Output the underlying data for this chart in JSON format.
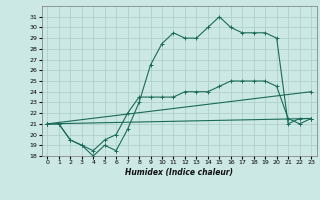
{
  "xlabel": "Humidex (Indice chaleur)",
  "bg_color": "#cce8e4",
  "line_color": "#1a6b5a",
  "grid_color": "#aaccc8",
  "xlim": [
    -0.5,
    23.5
  ],
  "ylim": [
    18,
    32
  ],
  "xticks": [
    0,
    1,
    2,
    3,
    4,
    5,
    6,
    7,
    8,
    9,
    10,
    11,
    12,
    13,
    14,
    15,
    16,
    17,
    18,
    19,
    20,
    21,
    22,
    23
  ],
  "yticks": [
    18,
    19,
    20,
    21,
    22,
    23,
    24,
    25,
    26,
    27,
    28,
    29,
    30,
    31
  ],
  "lines": [
    {
      "x": [
        0,
        1,
        2,
        3,
        4,
        5,
        6,
        7,
        8,
        9,
        10,
        11,
        12,
        13,
        14,
        15,
        16,
        17,
        18,
        19,
        20,
        21,
        22,
        23
      ],
      "y": [
        21,
        21,
        19.5,
        19,
        18,
        19,
        18.5,
        20.5,
        23,
        26.5,
        28.5,
        29.5,
        29,
        29,
        30,
        31,
        30,
        29.5,
        29.5,
        29.5,
        29,
        21,
        21.5,
        21.5
      ]
    },
    {
      "x": [
        0,
        1,
        2,
        3,
        4,
        5,
        6,
        7,
        8,
        9,
        10,
        11,
        12,
        13,
        14,
        15,
        16,
        17,
        18,
        19,
        20,
        21,
        22,
        23
      ],
      "y": [
        21,
        21,
        19.5,
        19,
        18.5,
        19.5,
        20,
        22,
        23.5,
        23.5,
        23.5,
        23.5,
        24,
        24,
        24,
        24.5,
        25,
        25,
        25,
        25,
        24.5,
        21.5,
        21,
        21.5
      ]
    },
    {
      "x": [
        0,
        23
      ],
      "y": [
        21,
        21.5
      ]
    },
    {
      "x": [
        0,
        23
      ],
      "y": [
        21,
        24
      ]
    }
  ]
}
